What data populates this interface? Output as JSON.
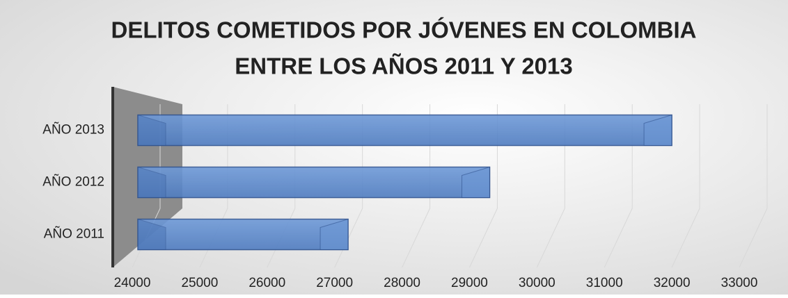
{
  "chart_data": {
    "type": "hbar3d",
    "title": [
      "DELITOS COMETIDOS POR JÓVENES EN COLOMBIA",
      "ENTRE LOS AÑOS 2011 Y 2013"
    ],
    "categories": [
      "AÑO 2011",
      "AÑO 2012",
      "AÑO 2013"
    ],
    "values": [
      27200,
      29300,
      32000
    ],
    "color": "#5b8bd0",
    "xlim": [
      24000,
      33000
    ],
    "xticks": [
      24000,
      25000,
      26000,
      27000,
      28000,
      29000,
      30000,
      31000,
      32000,
      33000
    ],
    "grid": true
  }
}
